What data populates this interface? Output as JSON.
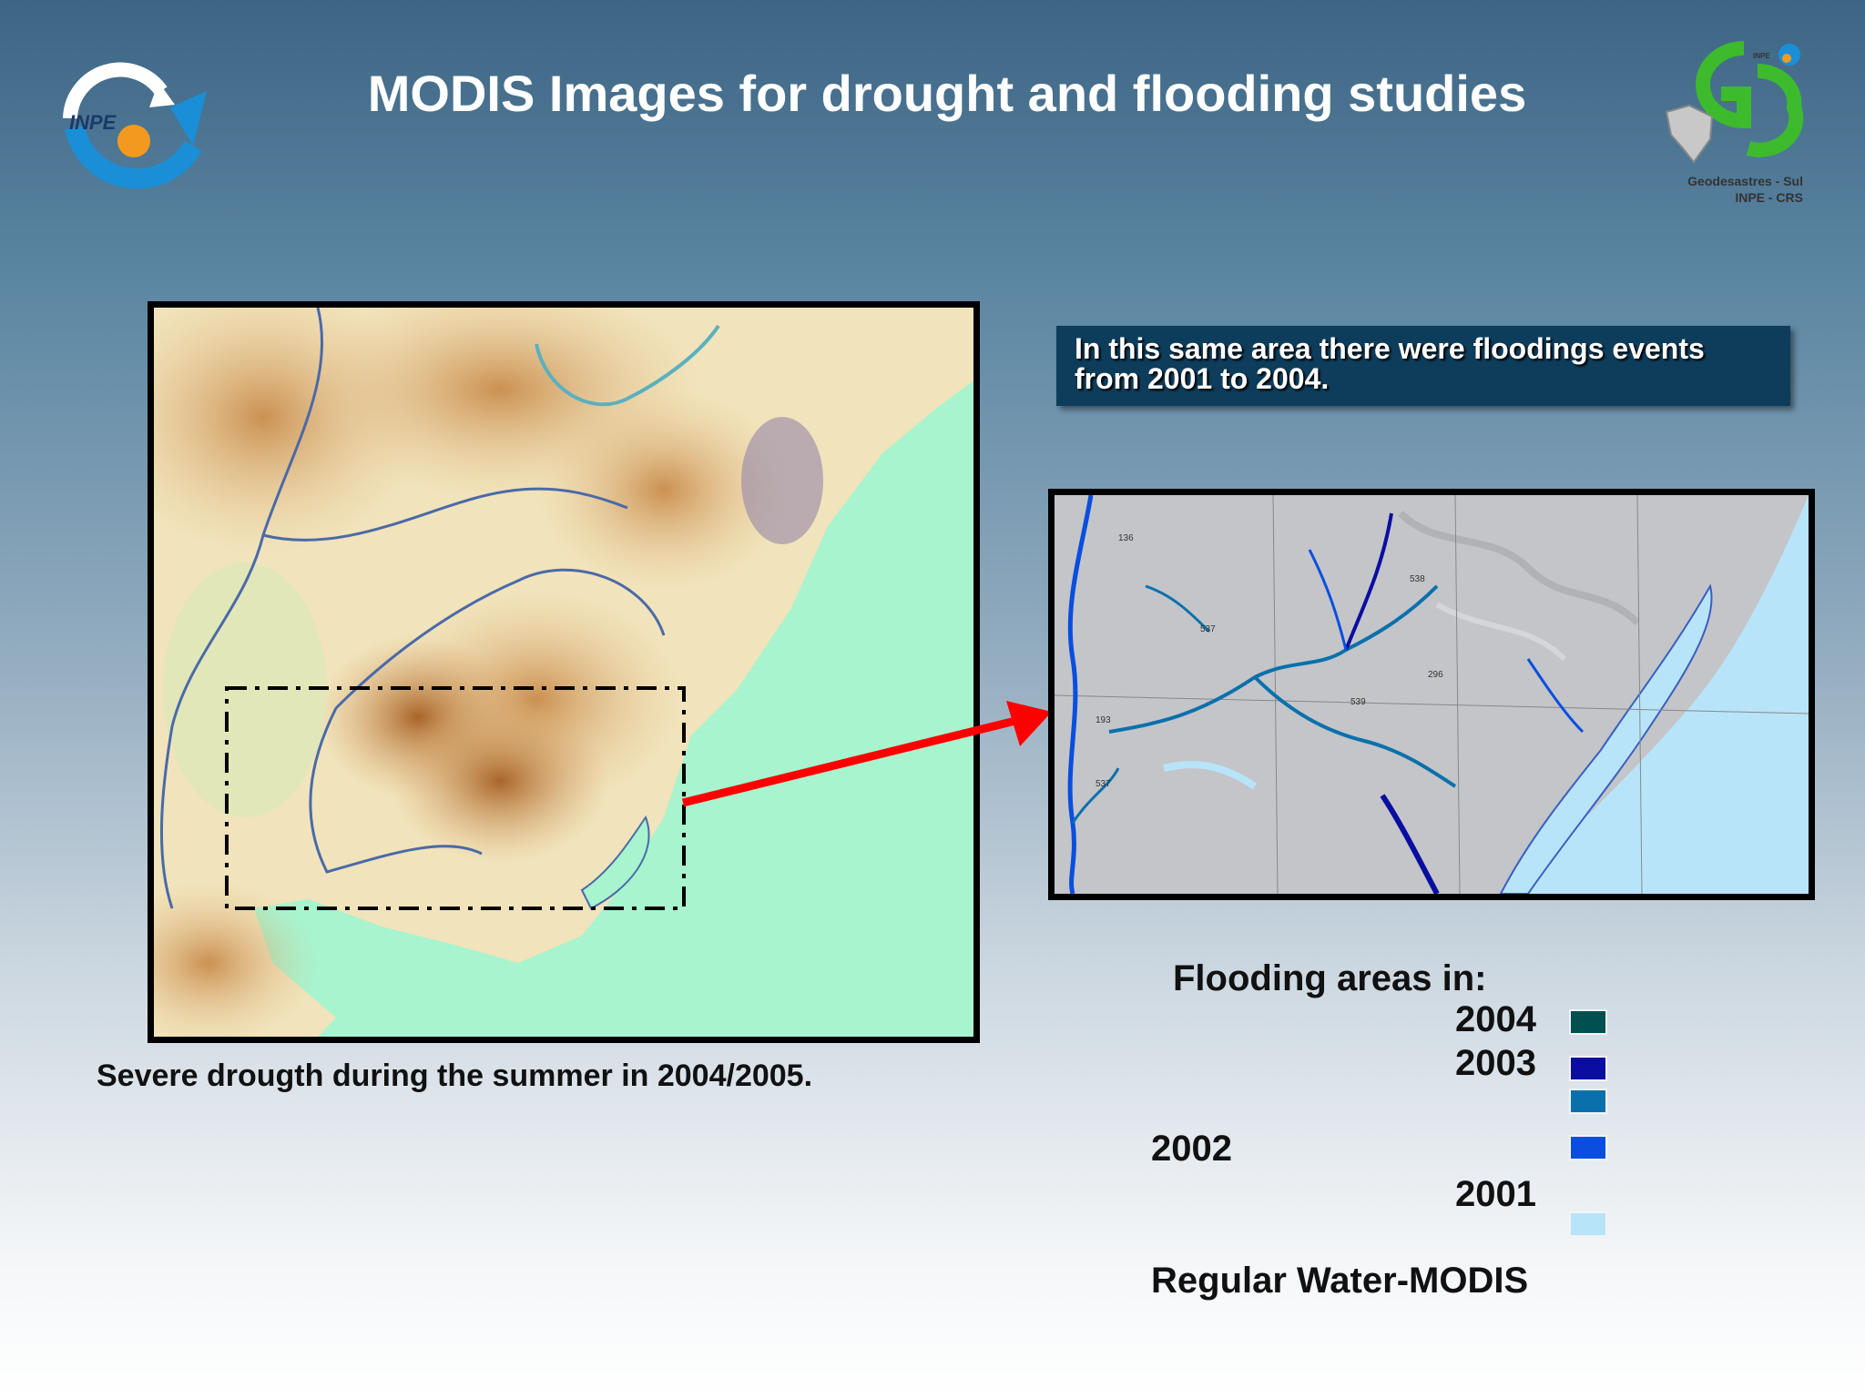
{
  "title": "MODIS Images for drought  and flooding studies",
  "logos": {
    "left": {
      "text": "INPE"
    },
    "right": {
      "caption_line1": "Geodesastres - Sul",
      "caption_line2": "INPE - CRS",
      "badge_text": "INPE"
    }
  },
  "callout": {
    "line1": "In this same area there were floodings  events",
    "line2": "from 2001 to 2004."
  },
  "drought_caption": "Severe drougth during the summer in 2004/2005.",
  "flood_map": {
    "labels": [
      "136",
      "537",
      "538",
      "296",
      "539",
      "193",
      "537"
    ]
  },
  "legend": {
    "title": "Flooding areas in:",
    "entries": [
      {
        "year": "2004",
        "color": "#005050"
      },
      {
        "year": "2003",
        "color": "#0a0ea0"
      },
      {
        "year": "",
        "color": "#0a70ac"
      },
      {
        "year": "2002",
        "color": "#0a4ee0"
      },
      {
        "year": "2001",
        "color": ""
      },
      {
        "year": "",
        "color": "#b8e4fa"
      }
    ],
    "regular_water": "Regular Water-MODIS"
  },
  "colors": {
    "ocean_left": "#a7f4cf",
    "arrow": "#ff0000",
    "callout_bg": "#0e3d5b",
    "terrain_dry": "#b8742e",
    "terrain_light": "#f4ecc8"
  }
}
